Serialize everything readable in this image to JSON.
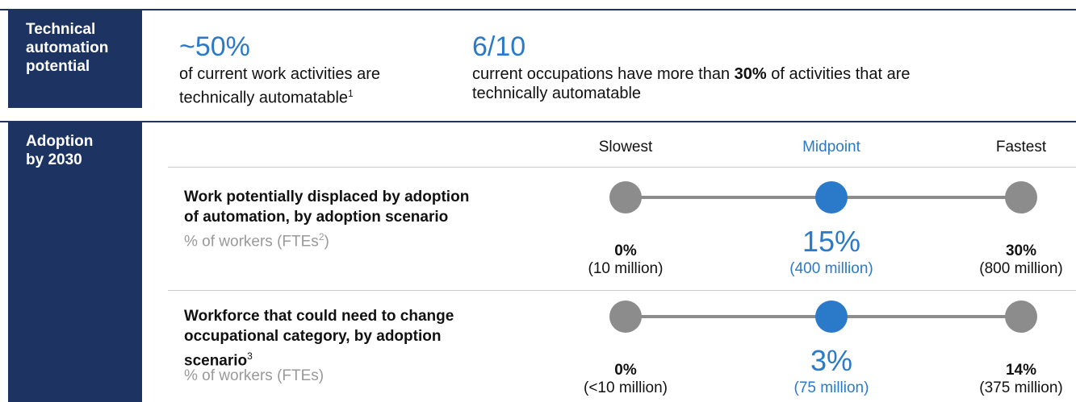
{
  "technical": {
    "label": "Technical automation potential",
    "stats": [
      {
        "value": "~50%",
        "text": "of current work activities are technically automatable",
        "note": "1"
      },
      {
        "value": "6/10",
        "text_before": "current occupations have more than ",
        "text_bold": "30%",
        "text_after": " of activities that are technically automatable"
      }
    ]
  },
  "adoption": {
    "label": "Adoption by 2030",
    "scenarios": [
      "Slowest",
      "Midpoint",
      "Fastest"
    ],
    "rows": [
      {
        "label_lines": [
          "Work potentially displaced by adoption",
          "of automation, by adoption scenario"
        ],
        "label_note": "",
        "subtitle": "% of workers (FTEs",
        "subtitle_note": "2",
        "subtitle_end": ")",
        "values": [
          {
            "pct": "0%",
            "count": "(10 million)"
          },
          {
            "pct": "15%",
            "count": "(400 million)"
          },
          {
            "pct": "30%",
            "count": "(800 million)"
          }
        ]
      },
      {
        "label_lines": [
          "Workforce that could need to change",
          "occupational category, by adoption",
          "scenario"
        ],
        "label_note": "3",
        "subtitle": "% of workers (FTEs)",
        "subtitle_note": "",
        "subtitle_end": "",
        "values": [
          {
            "pct": "0%",
            "count": "(<10 million)"
          },
          {
            "pct": "3%",
            "count": "(75 million)"
          },
          {
            "pct": "14%",
            "count": "(375 million)"
          }
        ]
      }
    ]
  }
}
